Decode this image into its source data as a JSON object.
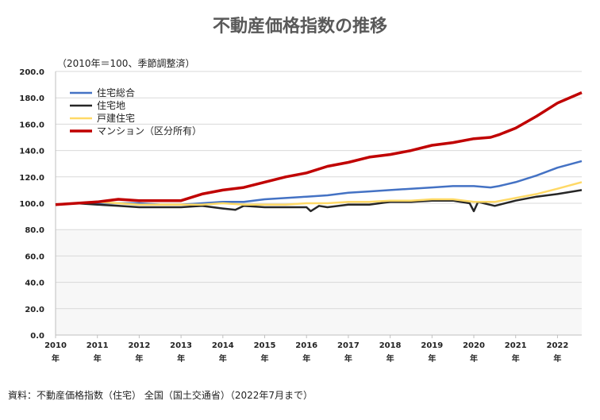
{
  "chart_data": {
    "type": "line",
    "title": "不動産価格指数の推移",
    "note": "（2010年＝100、季節調整済）",
    "source": "資料：不動産価格指数（住宅） 全国（国土交通省）（2022年7月まで）",
    "ylim": [
      0,
      200
    ],
    "yticks": [
      "0.0",
      "20.0",
      "40.0",
      "60.0",
      "80.0",
      "100.0",
      "120.0",
      "140.0",
      "160.0",
      "180.0",
      "200.0"
    ],
    "xlim": [
      2010,
      2022.58
    ],
    "xticks": [
      {
        "year": 2010,
        "label": "2010",
        "unit": "年"
      },
      {
        "year": 2011,
        "label": "2011",
        "unit": "年"
      },
      {
        "year": 2012,
        "label": "2012",
        "unit": "年"
      },
      {
        "year": 2013,
        "label": "2013",
        "unit": "年"
      },
      {
        "year": 2014,
        "label": "2014",
        "unit": "年"
      },
      {
        "year": 2015,
        "label": "2015",
        "unit": "年"
      },
      {
        "year": 2016,
        "label": "2016",
        "unit": "年"
      },
      {
        "year": 2017,
        "label": "2017",
        "unit": "年"
      },
      {
        "year": 2018,
        "label": "2018",
        "unit": "年"
      },
      {
        "year": 2019,
        "label": "2019",
        "unit": "年"
      },
      {
        "year": 2020,
        "label": "2020",
        "unit": "年"
      },
      {
        "year": 2021,
        "label": "2021",
        "unit": "年"
      },
      {
        "year": 2022,
        "label": "2022",
        "unit": "年"
      }
    ],
    "legend_position": "top-left",
    "series": [
      {
        "name": "住宅総合",
        "color": "#4472c4",
        "points": [
          [
            2010.0,
            99
          ],
          [
            2010.5,
            100
          ],
          [
            2011.0,
            100
          ],
          [
            2011.5,
            100
          ],
          [
            2012.0,
            100
          ],
          [
            2012.5,
            99
          ],
          [
            2013.0,
            99
          ],
          [
            2013.5,
            100
          ],
          [
            2014.0,
            101
          ],
          [
            2014.5,
            101
          ],
          [
            2015.0,
            103
          ],
          [
            2015.5,
            104
          ],
          [
            2016.0,
            105
          ],
          [
            2016.5,
            106
          ],
          [
            2017.0,
            108
          ],
          [
            2017.5,
            109
          ],
          [
            2018.0,
            110
          ],
          [
            2018.5,
            111
          ],
          [
            2019.0,
            112
          ],
          [
            2019.5,
            113
          ],
          [
            2020.0,
            113
          ],
          [
            2020.4,
            112
          ],
          [
            2020.6,
            113
          ],
          [
            2021.0,
            116
          ],
          [
            2021.5,
            121
          ],
          [
            2022.0,
            127
          ],
          [
            2022.58,
            132
          ]
        ]
      },
      {
        "name": "住宅地",
        "color": "#262626",
        "points": [
          [
            2010.0,
            99
          ],
          [
            2010.5,
            100
          ],
          [
            2011.0,
            99
          ],
          [
            2011.5,
            98
          ],
          [
            2012.0,
            97
          ],
          [
            2012.5,
            97
          ],
          [
            2013.0,
            97
          ],
          [
            2013.5,
            98
          ],
          [
            2014.0,
            96
          ],
          [
            2014.3,
            95
          ],
          [
            2014.5,
            98
          ],
          [
            2015.0,
            97
          ],
          [
            2015.5,
            97
          ],
          [
            2016.0,
            97
          ],
          [
            2016.1,
            94
          ],
          [
            2016.3,
            98
          ],
          [
            2016.5,
            97
          ],
          [
            2017.0,
            99
          ],
          [
            2017.5,
            99
          ],
          [
            2018.0,
            101
          ],
          [
            2018.5,
            101
          ],
          [
            2019.0,
            102
          ],
          [
            2019.5,
            102
          ],
          [
            2019.9,
            100
          ],
          [
            2020.0,
            94
          ],
          [
            2020.1,
            101
          ],
          [
            2020.5,
            98
          ],
          [
            2021.0,
            102
          ],
          [
            2021.5,
            105
          ],
          [
            2022.0,
            107
          ],
          [
            2022.58,
            110
          ]
        ]
      },
      {
        "name": "戸建住宅",
        "color": "#ffd966",
        "points": [
          [
            2010.0,
            99
          ],
          [
            2010.5,
            100
          ],
          [
            2011.0,
            101
          ],
          [
            2011.5,
            100
          ],
          [
            2012.0,
            99
          ],
          [
            2012.5,
            99
          ],
          [
            2013.0,
            99
          ],
          [
            2013.5,
            99
          ],
          [
            2014.0,
            100
          ],
          [
            2014.5,
            99
          ],
          [
            2015.0,
            99
          ],
          [
            2015.5,
            99
          ],
          [
            2016.0,
            100
          ],
          [
            2016.5,
            100
          ],
          [
            2017.0,
            101
          ],
          [
            2017.5,
            101
          ],
          [
            2018.0,
            102
          ],
          [
            2018.5,
            102
          ],
          [
            2019.0,
            103
          ],
          [
            2019.5,
            103
          ],
          [
            2020.0,
            101
          ],
          [
            2020.5,
            101
          ],
          [
            2021.0,
            104
          ],
          [
            2021.5,
            107
          ],
          [
            2022.0,
            111
          ],
          [
            2022.58,
            116
          ]
        ]
      },
      {
        "name": "マンション（区分所有）",
        "color": "#c00000",
        "points": [
          [
            2010.0,
            99
          ],
          [
            2010.5,
            100
          ],
          [
            2011.0,
            101
          ],
          [
            2011.5,
            103
          ],
          [
            2012.0,
            102
          ],
          [
            2012.5,
            102
          ],
          [
            2013.0,
            102
          ],
          [
            2013.5,
            107
          ],
          [
            2014.0,
            110
          ],
          [
            2014.5,
            112
          ],
          [
            2015.0,
            116
          ],
          [
            2015.5,
            120
          ],
          [
            2016.0,
            123
          ],
          [
            2016.5,
            128
          ],
          [
            2017.0,
            131
          ],
          [
            2017.5,
            135
          ],
          [
            2018.0,
            137
          ],
          [
            2018.5,
            140
          ],
          [
            2019.0,
            144
          ],
          [
            2019.5,
            146
          ],
          [
            2020.0,
            149
          ],
          [
            2020.4,
            150
          ],
          [
            2020.6,
            152
          ],
          [
            2021.0,
            157
          ],
          [
            2021.5,
            166
          ],
          [
            2022.0,
            176
          ],
          [
            2022.58,
            184
          ]
        ]
      }
    ]
  }
}
